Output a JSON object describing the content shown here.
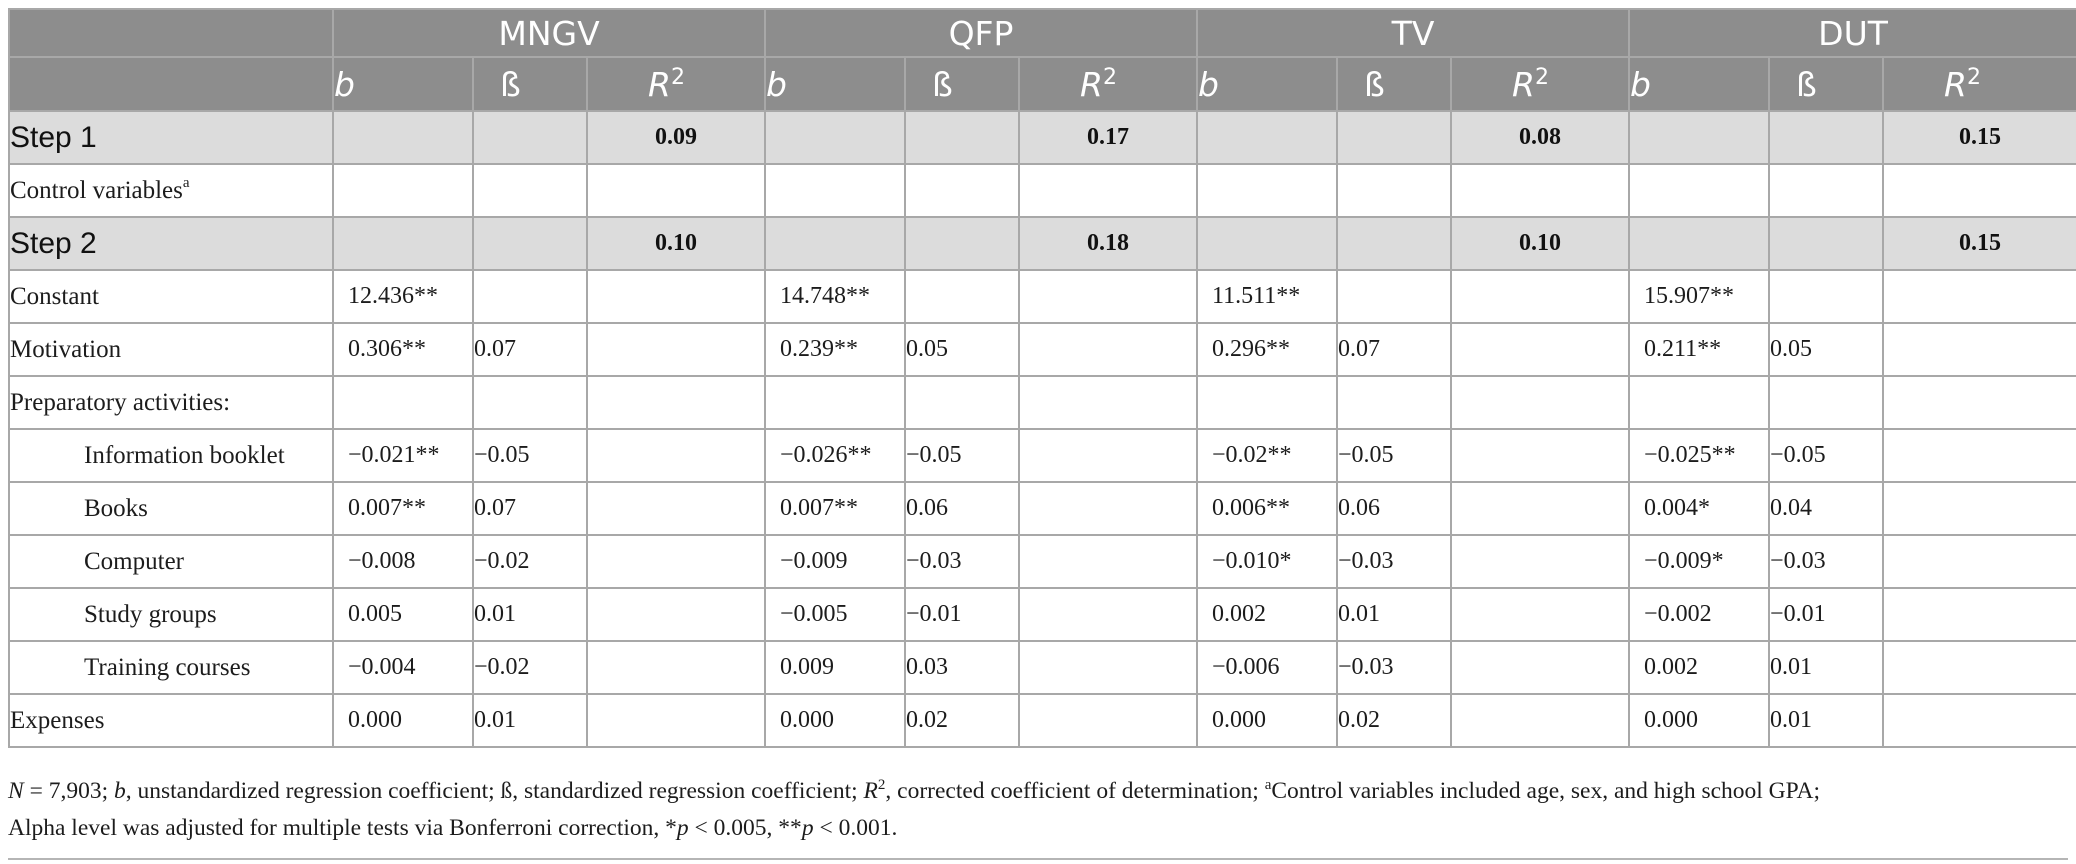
{
  "groups": [
    "MNGV",
    "QFP",
    "TV",
    "DUT"
  ],
  "subheaders": {
    "b": "b",
    "beta": "ß",
    "r": "R",
    "r_sup": "2"
  },
  "rows": [
    {
      "type": "step",
      "label": "Step 1",
      "cells": [
        "",
        "",
        "0.09",
        "",
        "",
        "0.17",
        "",
        "",
        "0.08",
        "",
        "",
        "0.15"
      ]
    },
    {
      "type": "plain",
      "label": "Control variables",
      "label_sup": "a",
      "indent": false,
      "cells": [
        "",
        "",
        "",
        "",
        "",
        "",
        "",
        "",
        "",
        "",
        "",
        ""
      ]
    },
    {
      "type": "step",
      "label": "Step 2",
      "cells": [
        "",
        "",
        "0.10",
        "",
        "",
        "0.18",
        "",
        "",
        "0.10",
        "",
        "",
        "0.15"
      ]
    },
    {
      "type": "plain",
      "label": "Constant",
      "indent": false,
      "cells": [
        "12.436**",
        "",
        "",
        "14.748**",
        "",
        "",
        "11.511**",
        "",
        "",
        "15.907**",
        "",
        ""
      ]
    },
    {
      "type": "plain",
      "label": "Motivation",
      "indent": false,
      "cells": [
        "0.306**",
        "0.07",
        "",
        "0.239**",
        "0.05",
        "",
        "0.296**",
        "0.07",
        "",
        "0.211**",
        "0.05",
        ""
      ]
    },
    {
      "type": "plain",
      "label": "Preparatory activities:",
      "indent": false,
      "cells": [
        "",
        "",
        "",
        "",
        "",
        "",
        "",
        "",
        "",
        "",
        "",
        ""
      ]
    },
    {
      "type": "plain",
      "label": "Information booklet",
      "indent": true,
      "cells": [
        "−0.021**",
        "−0.05",
        "",
        "−0.026**",
        "−0.05",
        "",
        "−0.02**",
        "−0.05",
        "",
        "−0.025**",
        "−0.05",
        ""
      ]
    },
    {
      "type": "plain",
      "label": "Books",
      "indent": true,
      "cells": [
        "0.007**",
        "0.07",
        "",
        "0.007**",
        "0.06",
        "",
        "0.006**",
        "0.06",
        "",
        "0.004*",
        "0.04",
        ""
      ]
    },
    {
      "type": "plain",
      "label": "Computer",
      "indent": true,
      "cells": [
        "−0.008",
        "−0.02",
        "",
        "−0.009",
        "−0.03",
        "",
        "−0.010*",
        "−0.03",
        "",
        "−0.009*",
        "−0.03",
        ""
      ]
    },
    {
      "type": "plain",
      "label": "Study groups",
      "indent": true,
      "cells": [
        "0.005",
        "0.01",
        "",
        "−0.005",
        "−0.01",
        "",
        "0.002",
        "0.01",
        "",
        "−0.002",
        "−0.01",
        ""
      ]
    },
    {
      "type": "plain",
      "label": "Training courses",
      "indent": true,
      "cells": [
        "−0.004",
        "−0.02",
        "",
        "0.009",
        "0.03",
        "",
        "−0.006",
        "−0.03",
        "",
        "0.002",
        "0.01",
        ""
      ]
    },
    {
      "type": "plain",
      "label": "Expenses",
      "indent": false,
      "cells": [
        "0.000",
        "0.01",
        "",
        "0.000",
        "0.02",
        "",
        "0.000",
        "0.02",
        "",
        "0.000",
        "0.01",
        ""
      ]
    }
  ],
  "footnote": {
    "n_label": "N",
    "n_value": " = 7,903; ",
    "b_label": "b",
    "b_def": ", unstandardized regression coefficient; ß, standardized regression coefficient; ",
    "r_label": "R",
    "r_sup": "2",
    "r_def": ", corrected coefficient of determination; ",
    "a_sup": "a",
    "a_def": "Control variables included age, sex, and high school GPA;",
    "line2_a": "Alpha level was adjusted for multiple tests via Bonferroni correction, *",
    "p": "p",
    "p1": " < 0.005, **",
    "p2": " < 0.001."
  }
}
